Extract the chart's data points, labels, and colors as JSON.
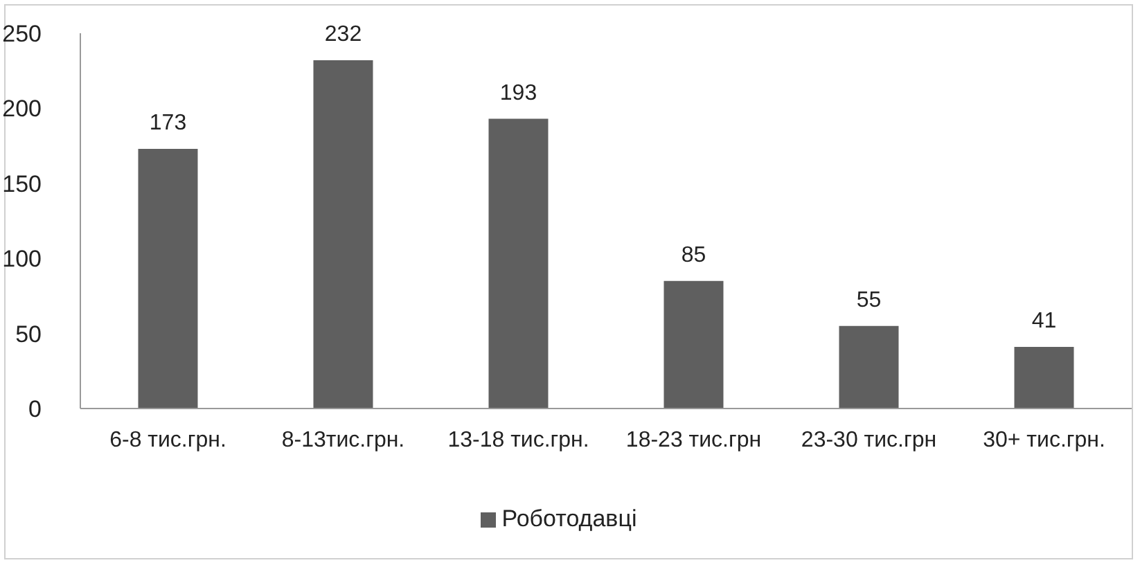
{
  "chart_data": {
    "type": "bar",
    "categories": [
      "6-8 тис.грн.",
      "8-13тис.грн.",
      "13-18 тис.грн.",
      "18-23 тис.грн",
      "23-30 тис.грн",
      "30+ тис.грн."
    ],
    "series": [
      {
        "name": "Роботодавці",
        "color": "#5f5f5f",
        "values": [
          173,
          232,
          193,
          85,
          55,
          41
        ]
      }
    ],
    "ylim": [
      0,
      250
    ],
    "yticks": [
      0,
      50,
      100,
      150,
      200,
      250
    ],
    "data_labels": true,
    "legend": "bottom",
    "grid": false
  }
}
